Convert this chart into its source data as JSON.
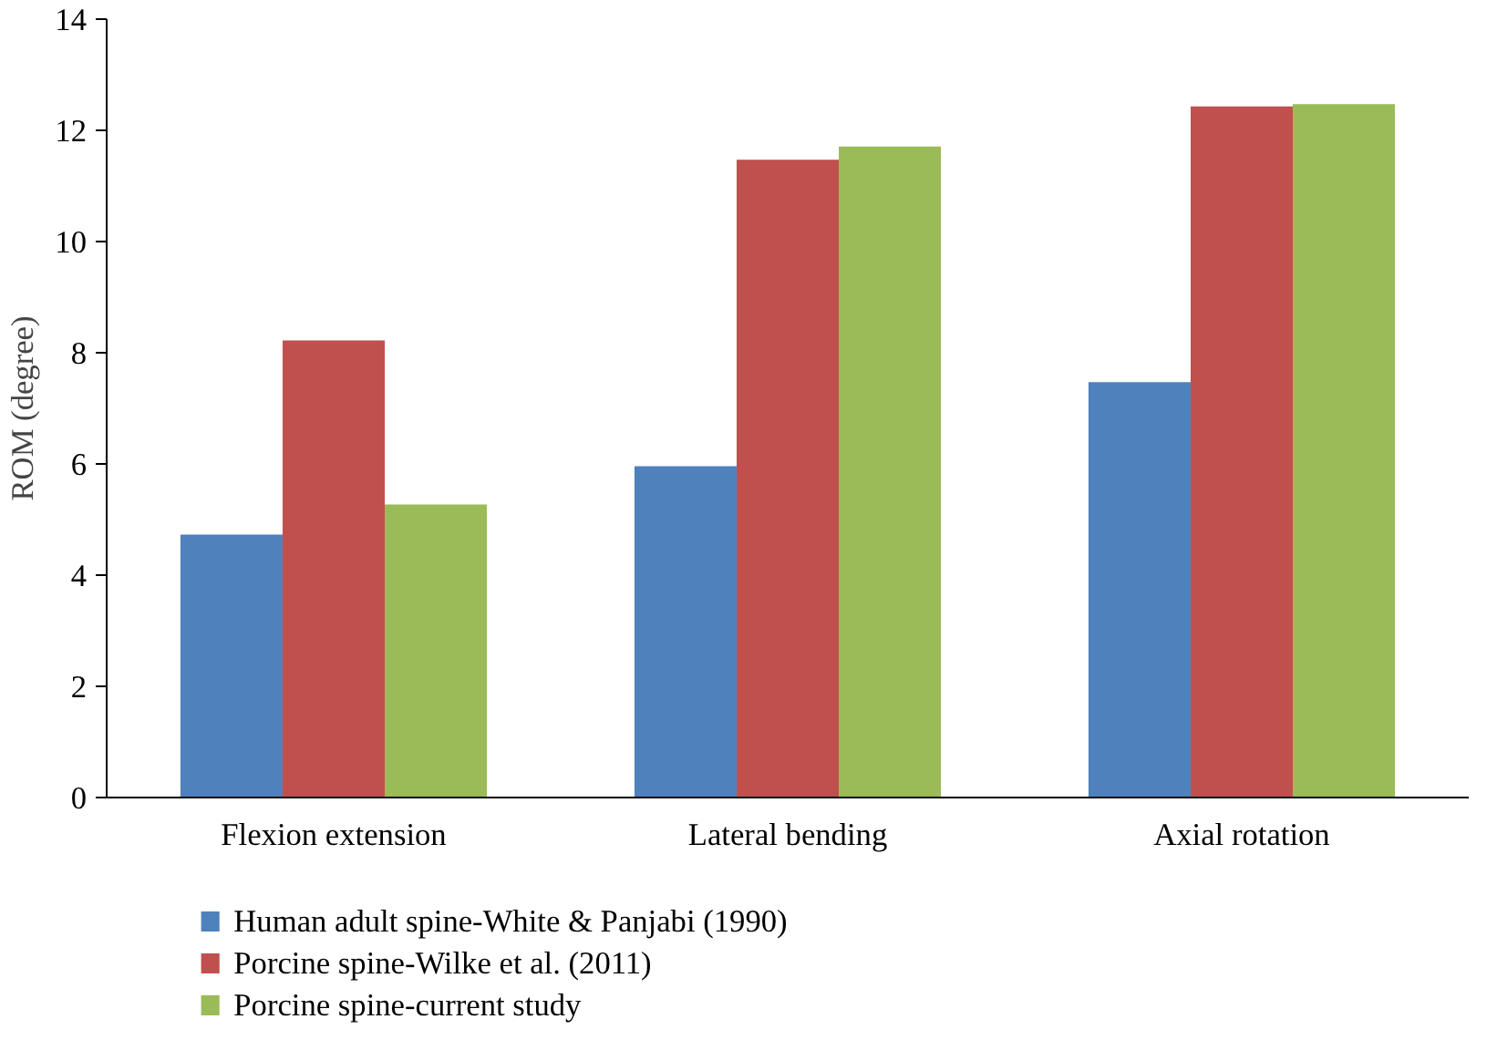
{
  "chart_data": {
    "type": "bar",
    "ylabel": "ROM (degree)",
    "categories": [
      "Flexion extension",
      "Lateral bending",
      "Axial rotation"
    ],
    "series": [
      {
        "name": "Human adult spine-White & Panjabi (1990)",
        "color": "#4f81bd",
        "values": [
          4.73,
          5.96,
          7.47
        ]
      },
      {
        "name": "Porcine spine-Wilke et al. (2011)",
        "color": "#c0504d",
        "values": [
          8.22,
          11.47,
          12.43
        ]
      },
      {
        "name": "Porcine spine-current study",
        "color": "#9bbb59",
        "values": [
          5.27,
          11.71,
          12.47
        ]
      }
    ],
    "ylim": [
      0,
      14
    ],
    "yticks": [
      0,
      2,
      4,
      6,
      8,
      10,
      12,
      14
    ],
    "grid": false,
    "legend": "bottom left"
  }
}
